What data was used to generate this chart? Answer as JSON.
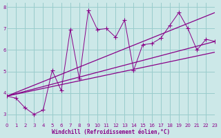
{
  "xlabel": "Windchill (Refroidissement éolien,°C)",
  "bg_color": "#cce8e8",
  "grid_color": "#99cccc",
  "line_color": "#880088",
  "xlim": [
    0,
    23
  ],
  "ylim": [
    2.6,
    8.2
  ],
  "yticks": [
    3,
    4,
    5,
    6,
    7,
    8
  ],
  "xticks": [
    0,
    1,
    2,
    3,
    4,
    5,
    6,
    7,
    8,
    9,
    10,
    11,
    12,
    13,
    14,
    15,
    16,
    17,
    18,
    19,
    20,
    21,
    22,
    23
  ],
  "jagged_x": [
    0,
    1,
    2,
    3,
    4,
    5,
    6,
    7,
    8,
    9,
    10,
    11,
    12,
    13,
    14,
    15,
    16,
    17,
    18,
    19,
    20,
    21,
    22,
    23
  ],
  "jagged_y": [
    3.85,
    3.75,
    3.3,
    3.0,
    3.2,
    5.05,
    4.1,
    6.95,
    4.65,
    7.85,
    6.95,
    7.0,
    6.6,
    7.4,
    5.05,
    6.25,
    6.3,
    6.55,
    7.15,
    7.75,
    7.0,
    6.0,
    6.5,
    6.4
  ],
  "trend1_x": [
    0,
    23
  ],
  "trend1_y": [
    3.85,
    7.75
  ],
  "trend2_x": [
    0,
    23
  ],
  "trend2_y": [
    3.85,
    6.4
  ],
  "trend3_x": [
    0,
    23
  ],
  "trend3_y": [
    3.85,
    5.9
  ]
}
